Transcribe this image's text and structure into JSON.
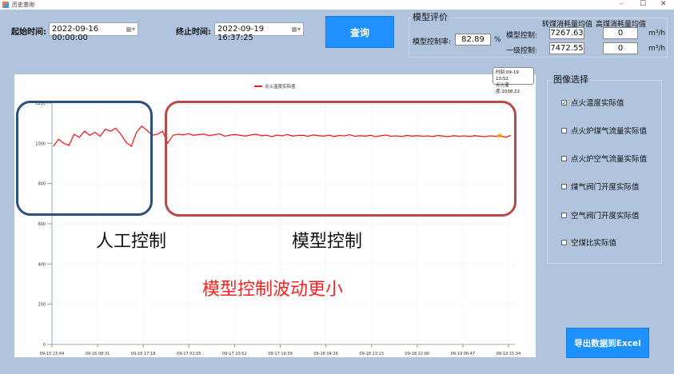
{
  "window": {
    "title": "历史查询",
    "controls": [
      "–",
      "☐",
      "✕"
    ]
  },
  "query": {
    "start_label": "起始时间:",
    "start_value": "2022-09-16 00:00:00",
    "end_label": "终止时间:",
    "end_value": "2022-09-19 16:37:25",
    "button": "查询"
  },
  "eval": {
    "title": "模型评价",
    "rate_label": "模型控制率:",
    "rate_value": "82.89",
    "rate_unit": "%",
    "col1": "转煤消耗量均值",
    "col2": "高煤消耗量均值",
    "rows": [
      {
        "label": "模型控制:",
        "v1": "7267.63",
        "v2": "0",
        "unit": "m³/h"
      },
      {
        "label": "一级控制:",
        "v1": "7472.55",
        "v2": "0",
        "unit": "m³/h"
      }
    ]
  },
  "image_select": {
    "title": "图像选择",
    "items": [
      {
        "label": "点火温度实际值",
        "checked": true
      },
      {
        "label": "点火炉煤气流量实际值",
        "checked": false
      },
      {
        "label": "点火炉空气流量实际值",
        "checked": false
      },
      {
        "label": "煤气阀门开度实际值",
        "checked": false
      },
      {
        "label": "空气阀门开度实际值",
        "checked": false
      },
      {
        "label": "空煤比实际值",
        "checked": false
      }
    ]
  },
  "export_button": "导出数据到Excel",
  "annotations": {
    "manual": "人工控制",
    "model": "模型控制",
    "note": "模型控制波动更小",
    "manual_color": "#2b4f7e",
    "model_color": "#b94a48",
    "note_color": "#ff2020"
  },
  "tooltip": {
    "line1": "时刻:09-19 13:52",
    "line2": "点火温度:1038.22"
  },
  "chart_data": {
    "type": "line",
    "legend": "点火温度实际值",
    "legend_position": "top-center",
    "series_color": "#ff1a1a",
    "highlight_color": "#ffa500",
    "ylim": [
      0,
      1200
    ],
    "yticks": [
      0,
      200,
      400,
      600,
      800,
      1000,
      1200
    ],
    "grid": true,
    "xticks": [
      "09-15 23:44",
      "09-16 08:31",
      "09-16 17:18",
      "09-17 02:05",
      "09-17 10:52",
      "09-17 19:39",
      "09-18 04:26",
      "09-18 13:13",
      "09-18 22:00",
      "09-19 06:47",
      "09-19 15:34"
    ],
    "x": [
      "09-16 00:00",
      "09-16 01:00",
      "09-16 02:00",
      "09-16 03:00",
      "09-16 04:00",
      "09-16 05:00",
      "09-16 06:00",
      "09-16 07:00",
      "09-16 08:00",
      "09-16 09:00",
      "09-16 10:00",
      "09-16 11:00",
      "09-16 12:00",
      "09-16 13:00",
      "09-16 14:00",
      "09-16 15:00",
      "09-16 16:00",
      "09-16 17:00",
      "09-16 18:00",
      "09-16 19:00",
      "09-16 20:00",
      "09-16 21:00",
      "09-16 22:00",
      "09-16 23:00",
      "09-17 00:00",
      "09-17 01:00",
      "09-17 02:00",
      "09-17 03:00",
      "09-17 04:00",
      "09-17 05:00",
      "09-17 06:00",
      "09-17 07:00",
      "09-17 08:00",
      "09-17 09:00",
      "09-17 10:00",
      "09-17 11:00",
      "09-17 12:00",
      "09-17 13:00",
      "09-17 14:00",
      "09-17 15:00",
      "09-17 16:00",
      "09-17 17:00",
      "09-17 18:00",
      "09-17 19:00",
      "09-17 20:00",
      "09-17 21:00",
      "09-17 22:00",
      "09-17 23:00",
      "09-18 00:00",
      "09-18 01:00",
      "09-18 02:00",
      "09-18 03:00",
      "09-18 04:00",
      "09-18 05:00",
      "09-18 06:00",
      "09-18 07:00",
      "09-18 08:00",
      "09-18 09:00",
      "09-18 10:00",
      "09-18 11:00",
      "09-18 12:00",
      "09-18 13:00",
      "09-18 14:00",
      "09-18 15:00",
      "09-18 16:00",
      "09-18 17:00",
      "09-18 18:00",
      "09-18 19:00",
      "09-18 20:00",
      "09-18 21:00",
      "09-18 22:00",
      "09-18 23:00",
      "09-19 00:00",
      "09-19 01:00",
      "09-19 02:00",
      "09-19 03:00",
      "09-19 04:00",
      "09-19 05:00",
      "09-19 06:00",
      "09-19 07:00",
      "09-19 08:00",
      "09-19 09:00",
      "09-19 10:00",
      "09-19 11:00",
      "09-19 12:00",
      "09-19 13:00",
      "09-19 14:00",
      "09-19 15:00",
      "09-19 16:00"
    ],
    "values": [
      985,
      1020,
      1000,
      990,
      1045,
      1030,
      1060,
      1040,
      1055,
      1035,
      1070,
      1060,
      1075,
      1045,
      1005,
      985,
      1055,
      1085,
      1065,
      1040,
      1045,
      1060,
      1000,
      1040,
      1045,
      1042,
      1048,
      1040,
      1044,
      1046,
      1038,
      1043,
      1047,
      1035,
      1041,
      1044,
      1039,
      1036,
      1042,
      1045,
      1038,
      1040,
      1033,
      1041,
      1037,
      1044,
      1036,
      1039,
      1040,
      1035,
      1042,
      1038,
      1036,
      1041,
      1034,
      1039,
      1037,
      1043,
      1035,
      1038,
      1036,
      1040,
      1033,
      1038,
      1041,
      1035,
      1037,
      1034,
      1039,
      1036,
      1038,
      1035,
      1037,
      1034,
      1039,
      1036,
      1033,
      1038,
      1035,
      1037,
      1034,
      1038,
      1036,
      1033,
      1037,
      1035,
      1038,
      1030,
      1040
    ],
    "highlight": {
      "x": "09-19 13:52",
      "y": 1038.22
    }
  }
}
